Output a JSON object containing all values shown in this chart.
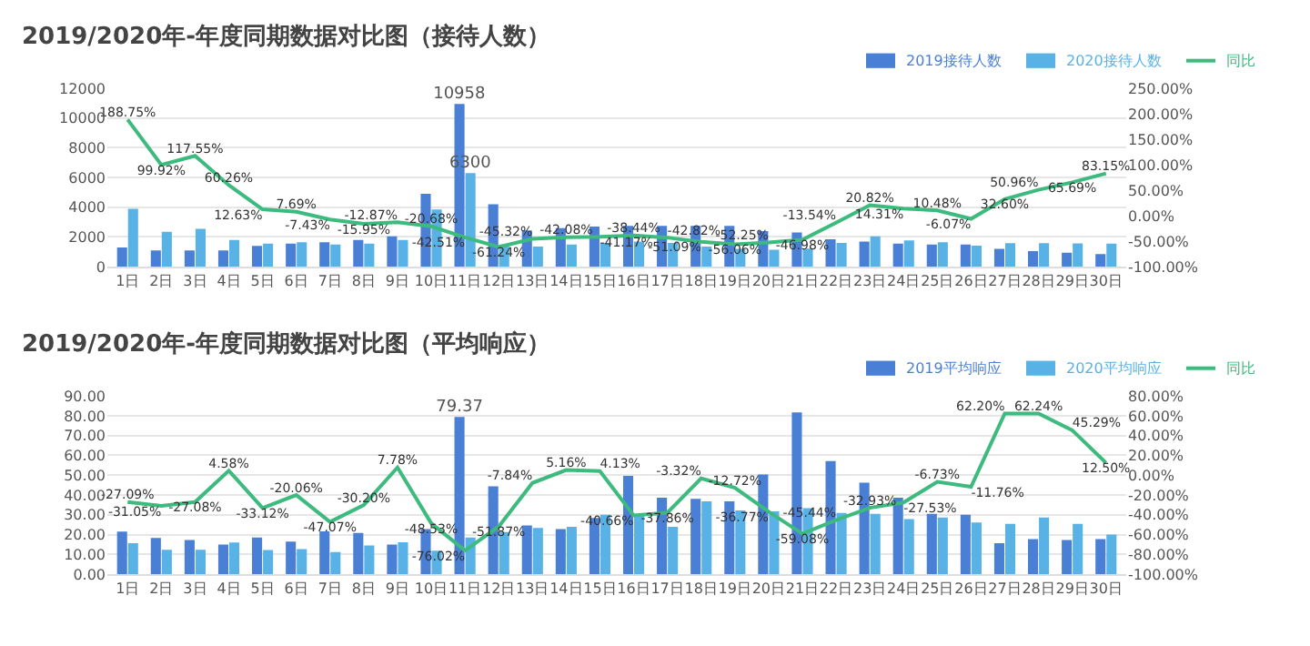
{
  "chart_data": [
    {
      "type": "bar",
      "title": "2019/2020年-年度同期数据对比图（接待人数）",
      "categories": [
        "1日",
        "2日",
        "3日",
        "4日",
        "5日",
        "6日",
        "7日",
        "8日",
        "9日",
        "10日",
        "11日",
        "12日",
        "13日",
        "14日",
        "15日",
        "16日",
        "17日",
        "18日",
        "19日",
        "20日",
        "21日",
        "22日",
        "23日",
        "24日",
        "25日",
        "26日",
        "27日",
        "28日",
        "29日",
        "30日"
      ],
      "series": [
        {
          "name": "2019接待人数",
          "color": "#4a7fd6",
          "values": [
            1300,
            1100,
            1100,
            1100,
            1400,
            1550,
            1650,
            1800,
            2050,
            4900,
            10958,
            4200,
            2450,
            2600,
            2700,
            2750,
            2750,
            2750,
            2750,
            2400,
            2300,
            1850,
            1700,
            1550,
            1500,
            1500,
            1200,
            1050,
            950,
            850
          ],
          "value_labels": [
            null,
            null,
            null,
            null,
            null,
            null,
            null,
            null,
            null,
            null,
            "10958",
            null,
            null,
            null,
            null,
            null,
            null,
            null,
            null,
            null,
            null,
            null,
            null,
            null,
            null,
            null,
            null,
            null,
            null,
            null
          ]
        },
        {
          "name": "2020接待人数",
          "color": "#58b2e6",
          "values": [
            3900,
            2350,
            2550,
            1800,
            1550,
            1650,
            1500,
            1550,
            1800,
            3850,
            6300,
            1500,
            1350,
            1500,
            1600,
            1700,
            1600,
            1350,
            1200,
            1150,
            1220,
            1600,
            2050,
            1770,
            1650,
            1410,
            1590,
            1585,
            1575,
            1560
          ],
          "value_labels": [
            null,
            null,
            null,
            null,
            null,
            null,
            null,
            null,
            null,
            null,
            "6300",
            null,
            null,
            null,
            null,
            null,
            null,
            null,
            null,
            null,
            null,
            null,
            null,
            null,
            null,
            null,
            null,
            null,
            null,
            null
          ]
        },
        {
          "name": "同比",
          "type": "line",
          "axis": "y2",
          "color": "#3dba7e",
          "values": [
            188.75,
            99.92,
            117.55,
            60.26,
            12.63,
            7.69,
            -7.43,
            -15.95,
            -12.87,
            -20.68,
            -42.51,
            -61.24,
            -45.32,
            -42.08,
            -41.17,
            -38.44,
            -42.82,
            -51.09,
            -56.06,
            -52.25,
            -46.98,
            -13.54,
            20.82,
            14.31,
            10.48,
            -6.07,
            32.6,
            50.96,
            65.69,
            83.15
          ],
          "value_labels": [
            "188.75%",
            "99.92%",
            "117.55%",
            "60.26%",
            "12.63%",
            "7.69%",
            "-7.43%",
            "-15.95%",
            "-12.87%",
            "-20.68%",
            "-42.51%",
            "-61.24%",
            "-45.32%",
            "-42.08%",
            "-41.17%",
            "-38.44%",
            "-42.82%",
            "-51.09%",
            "-56.06%",
            "-52.25%",
            "-46.98%",
            "-13.54%",
            "20.82%",
            "14.31%",
            "10.48%",
            "-6.07%",
            "32.60%",
            "50.96%",
            "65.69%",
            "83.15%"
          ]
        }
      ],
      "ylim": [
        0,
        12000
      ],
      "yticks": [
        0,
        2000,
        4000,
        6000,
        8000,
        10000,
        12000
      ],
      "y2lim": [
        -100,
        250
      ],
      "y2ticks": [
        {
          "value": -100,
          "label": "-100.00%"
        },
        {
          "value": -50,
          "label": "-50.00%"
        },
        {
          "value": 0,
          "label": "0.00%"
        },
        {
          "value": 50,
          "label": "50.00%"
        },
        {
          "value": 100,
          "label": "100.00%"
        },
        {
          "value": 150,
          "label": "150.00%"
        },
        {
          "value": 200,
          "label": "200.00%"
        },
        {
          "value": 250,
          "label": "250.00%"
        }
      ],
      "grid": "y",
      "legend": "top right",
      "marker": "none",
      "line_style": "solid"
    },
    {
      "type": "bar",
      "title": "2019/2020年-年度同期数据对比图（平均响应）",
      "categories": [
        "1日",
        "2日",
        "3日",
        "4日",
        "5日",
        "6日",
        "7日",
        "8日",
        "9日",
        "10日",
        "11日",
        "12日",
        "13日",
        "14日",
        "15日",
        "16日",
        "17日",
        "18日",
        "19日",
        "20日",
        "21日",
        "22日",
        "23日",
        "24日",
        "25日",
        "26日",
        "27日",
        "28日",
        "29日",
        "30日"
      ],
      "series": [
        {
          "name": "2019平均响应",
          "color": "#4a7fd6",
          "values": [
            21.5,
            18.3,
            17.3,
            15.0,
            18.5,
            16.5,
            21.6,
            20.8,
            15.0,
            22.8,
            79.37,
            44.4,
            24.6,
            22.8,
            28.4,
            49.7,
            38.6,
            38.1,
            36.8,
            50.3,
            81.7,
            57.1,
            46.2,
            38.6,
            30.5,
            30.0,
            15.7,
            17.8,
            17.3,
            17.8
          ],
          "value_labels": [
            null,
            null,
            null,
            null,
            null,
            null,
            null,
            null,
            null,
            null,
            "79.37",
            null,
            null,
            null,
            null,
            null,
            null,
            null,
            null,
            null,
            null,
            null,
            null,
            null,
            null,
            null,
            null,
            null,
            null,
            null
          ]
        },
        {
          "name": "2020平均响应",
          "color": "#58b2e6",
          "values": [
            15.7,
            12.4,
            12.4,
            16.0,
            12.2,
            12.7,
            11.2,
            14.5,
            16.2,
            11.9,
            18.5,
            21.3,
            23.4,
            23.9,
            30.0,
            29.4,
            24.0,
            36.8,
            32.2,
            31.7,
            33.4,
            31.0,
            30.5,
            27.9,
            28.7,
            26.1,
            25.4,
            28.7,
            25.4,
            20.0
          ]
        },
        {
          "name": "同比",
          "type": "line",
          "axis": "y2",
          "color": "#3dba7e",
          "values": [
            -27.09,
            -31.05,
            -27.08,
            4.58,
            -33.12,
            -20.06,
            -47.07,
            -30.2,
            7.78,
            -48.53,
            -76.02,
            -51.87,
            -7.84,
            5.16,
            4.13,
            -40.66,
            -37.86,
            -3.32,
            -12.72,
            -36.77,
            -59.08,
            -45.44,
            -32.93,
            -27.53,
            -6.73,
            -11.76,
            62.2,
            62.24,
            45.29,
            12.5
          ],
          "value_labels": [
            "-27.09%",
            "-31.05%",
            "-27.08%",
            "4.58%",
            "-33.12%",
            "-20.06%",
            "-47.07%",
            "-30.20%",
            "7.78%",
            "-48.53%",
            "-76.02%",
            "-51.87%",
            "-7.84%",
            "5.16%",
            "4.13%",
            "-40.66%",
            "-37.86%",
            "-3.32%",
            "-12.72%",
            "-36.77%",
            "-59.08%",
            "-45.44%",
            "-32.93%",
            "-27.53%",
            "-6.73%",
            "-11.76%",
            "62.20%",
            "62.24%",
            "45.29%",
            "12.50%"
          ]
        }
      ],
      "ylim": [
        0,
        90
      ],
      "yticks": [
        {
          "value": 0,
          "label": "0.00"
        },
        {
          "value": 10,
          "label": "10.00"
        },
        {
          "value": 20,
          "label": "20.00"
        },
        {
          "value": 30,
          "label": "30.00"
        },
        {
          "value": 40,
          "label": "40.00"
        },
        {
          "value": 50,
          "label": "50.00"
        },
        {
          "value": 60,
          "label": "60.00"
        },
        {
          "value": 70,
          "label": "70.00"
        },
        {
          "value": 80,
          "label": "80.00"
        },
        {
          "value": 90,
          "label": "90.00"
        }
      ],
      "y2lim": [
        -100,
        80
      ],
      "y2ticks": [
        {
          "value": -100,
          "label": "-100.00%"
        },
        {
          "value": -80,
          "label": "-80.00%"
        },
        {
          "value": -60,
          "label": "-60.00%"
        },
        {
          "value": -40,
          "label": "-40.00%"
        },
        {
          "value": -20,
          "label": "-20.00%"
        },
        {
          "value": 0,
          "label": "0.00%"
        },
        {
          "value": 20,
          "label": "20.00%"
        },
        {
          "value": 40,
          "label": "40.00%"
        },
        {
          "value": 60,
          "label": "60.00%"
        },
        {
          "value": 80,
          "label": "80.00%"
        }
      ],
      "grid": "y",
      "legend": "top right",
      "marker": "none",
      "line_style": "solid"
    }
  ]
}
